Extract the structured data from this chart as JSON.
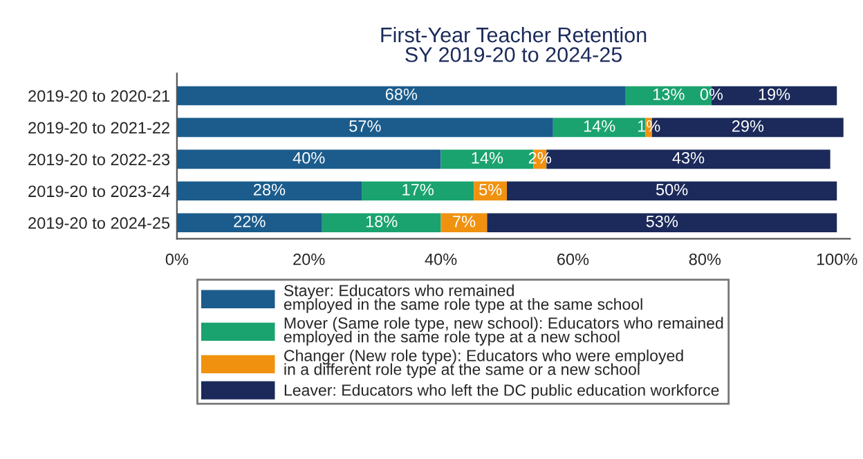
{
  "chart_data": {
    "type": "bar",
    "orientation": "horizontal",
    "stacked": true,
    "title": "First-Year Teacher Retention\nSY 2019-20 to 2024-25",
    "categories": [
      "2019-20 to 2020-21",
      "2019-20 to 2021-22",
      "2019-20 to 2022-23",
      "2019-20 to 2023-24",
      "2019-20 to 2024-25"
    ],
    "series": [
      {
        "name": "Stayer: Educators who remained\nemployed in the same role type at the same school",
        "color": "#1b5c8c",
        "values": [
          68,
          57,
          40,
          28,
          22
        ]
      },
      {
        "name": "Mover (Same role type, new school): Educators who remained\nemployed in the same role type at a new school",
        "color": "#1aa36f",
        "values": [
          13,
          14,
          14,
          17,
          18
        ]
      },
      {
        "name": "Changer (New role type): Educators who were employed\nin a different role type at the same or a new school",
        "color": "#f0920f",
        "values": [
          0,
          1,
          2,
          5,
          7
        ]
      },
      {
        "name": "Leaver: Educators who left the DC public education workforce",
        "color": "#1b2a5a",
        "values": [
          19,
          29,
          43,
          50,
          53
        ]
      }
    ],
    "value_labels": [
      [
        "68%",
        "57%",
        "40%",
        "28%",
        "22%"
      ],
      [
        "13%",
        "14%",
        "14%",
        "17%",
        "18%"
      ],
      [
        "0%",
        "1%",
        "2%",
        "5%",
        "7%"
      ],
      [
        "19%",
        "29%",
        "43%",
        "50%",
        "53%"
      ]
    ],
    "xlim": [
      0,
      102
    ],
    "xticks": [
      {
        "value": 0,
        "label": "0%"
      },
      {
        "value": 20,
        "label": "20%"
      },
      {
        "value": 40,
        "label": "40%"
      },
      {
        "value": 60,
        "label": "60%"
      },
      {
        "value": 80,
        "label": "80%"
      },
      {
        "value": 100,
        "label": "100%"
      }
    ],
    "grid": false,
    "legend": "bottom"
  }
}
